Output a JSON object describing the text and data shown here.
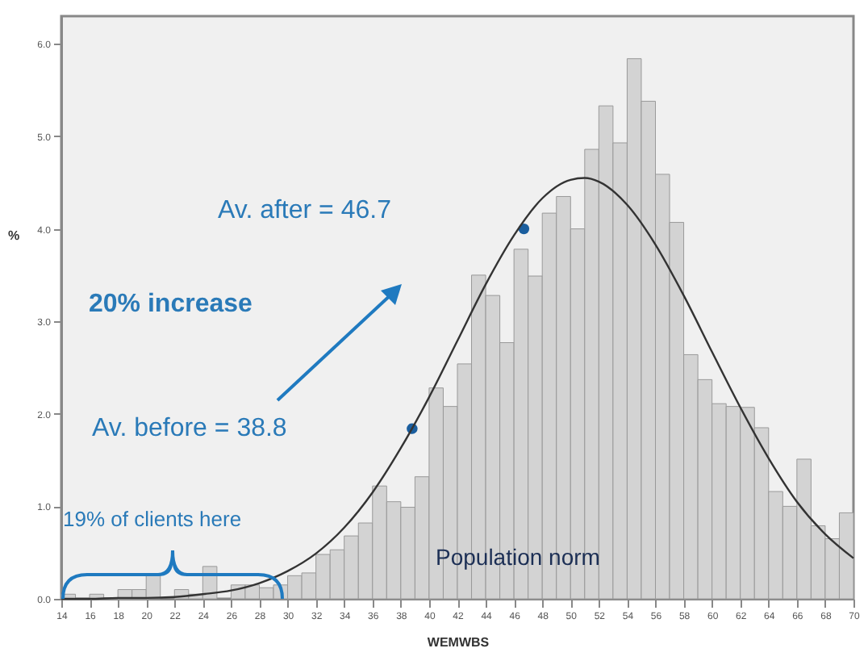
{
  "chart_data": {
    "type": "histogram",
    "xlabel": "WEMWBS",
    "ylabel": "%",
    "color": "#d3d3d3",
    "bins": [
      14,
      15,
      16,
      17,
      18,
      19,
      20,
      21,
      22,
      23,
      24,
      25,
      26,
      27,
      28,
      29,
      30,
      31,
      32,
      33,
      34,
      35,
      36,
      37,
      38,
      39,
      40,
      41,
      42,
      43,
      44,
      45,
      46,
      47,
      48,
      49,
      50,
      51,
      52,
      53,
      54,
      55,
      56,
      57,
      58,
      59,
      60,
      61,
      62,
      63,
      64,
      65,
      66,
      67,
      68,
      69,
      70
    ],
    "values": [
      0.05,
      0,
      0.05,
      0,
      0.1,
      0.1,
      0.25,
      0,
      0.1,
      0.05,
      0.35,
      0,
      0.15,
      0.15,
      0.12,
      0.15,
      0.25,
      0.28,
      0.48,
      0.53,
      0.68,
      0.82,
      1.22,
      1.05,
      0.99,
      1.32,
      2.28,
      2.08,
      2.54,
      3.5,
      3.28,
      2.77,
      3.78,
      3.49,
      4.17,
      4.35,
      4.0,
      4.86,
      5.33,
      4.93,
      5.84,
      5.38,
      4.59,
      4.07,
      2.64,
      2.37,
      2.11,
      2.08,
      2.07,
      1.85,
      1.16,
      1.0,
      1.51,
      0.79,
      0.65,
      0.93
    ],
    "series": [
      {
        "type": "scatter",
        "color": "#1a5e9e",
        "marker": "circle",
        "x": [
          38.8,
          46.7
        ],
        "values": [
          1.84,
          4.0
        ]
      },
      {
        "type": "line",
        "color": "#333333",
        "x": [
          14,
          16,
          18,
          20,
          22,
          24,
          26,
          28,
          30,
          32,
          34,
          36,
          38,
          40,
          42,
          44,
          46,
          48,
          50,
          51,
          52,
          54,
          56,
          58,
          60,
          62,
          64,
          66,
          68,
          70
        ],
        "values": [
          0.0,
          0.0,
          0.01,
          0.01,
          0.02,
          0.05,
          0.09,
          0.17,
          0.3,
          0.49,
          0.77,
          1.15,
          1.63,
          2.18,
          2.79,
          3.4,
          3.93,
          4.33,
          4.53,
          4.55,
          4.51,
          4.26,
          3.83,
          3.28,
          2.67,
          2.07,
          1.52,
          1.05,
          0.7,
          0.44
        ]
      }
    ],
    "xlim": [
      14,
      70
    ],
    "ylim": [
      0,
      6.3
    ],
    "xticks": [
      14,
      16,
      18,
      20,
      22,
      24,
      26,
      28,
      30,
      32,
      34,
      36,
      38,
      40,
      42,
      44,
      46,
      48,
      50,
      52,
      54,
      56,
      58,
      60,
      62,
      64,
      66,
      68,
      70
    ],
    "yticks": [
      {
        "value": 0,
        "label": "0.0"
      },
      {
        "value": 1,
        "label": "1.0"
      },
      {
        "value": 2,
        "label": "2.0"
      },
      {
        "value": 3,
        "label": "3.0"
      },
      {
        "value": 4,
        "label": "4.0"
      },
      {
        "value": 5,
        "label": "5.0"
      },
      {
        "value": 6,
        "label": "6.0"
      }
    ],
    "annotations": [
      "Av. after = 46.7",
      "20% increase",
      "Av. before = 38.8",
      "19% of clients here",
      "Population  norm"
    ]
  }
}
